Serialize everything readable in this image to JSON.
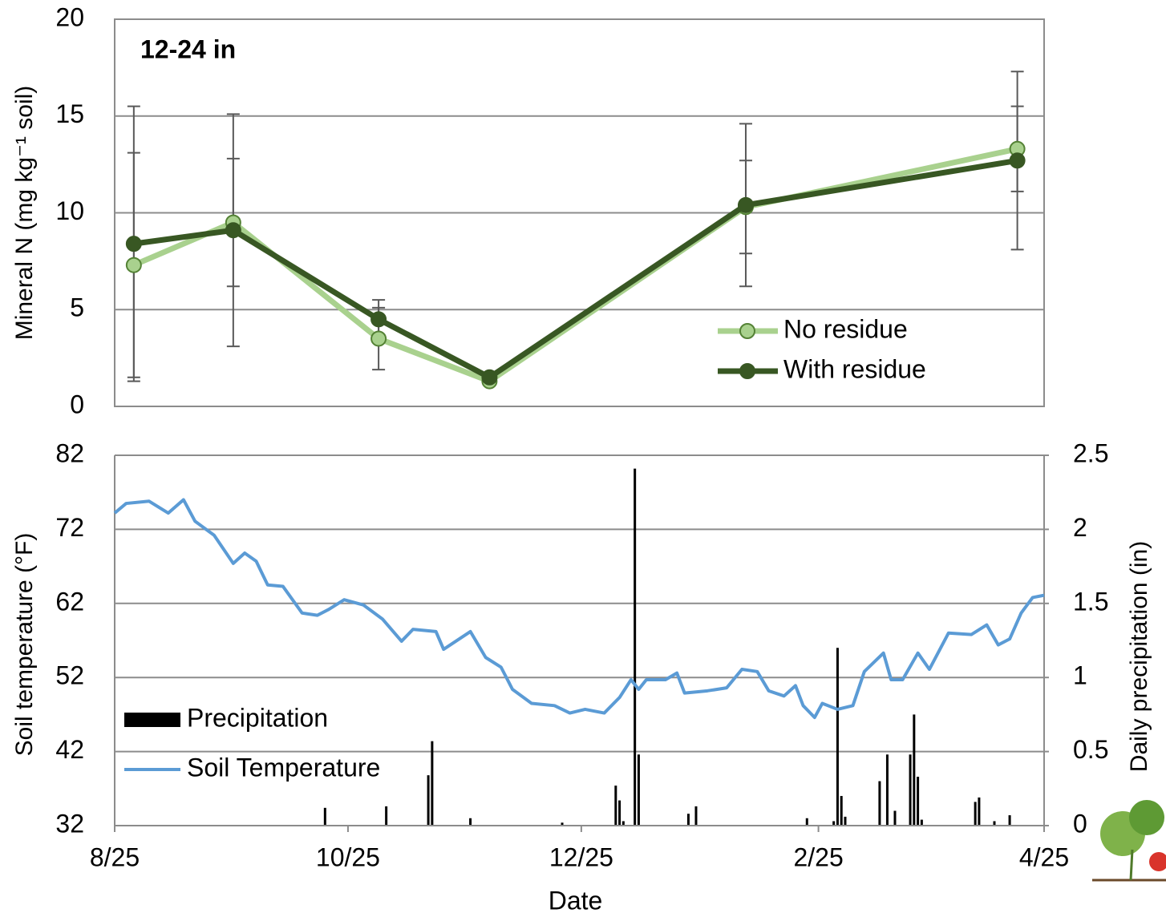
{
  "chart_data": [
    {
      "type": "line",
      "annotation": "12-24 in",
      "ylabel": "Mineral N (mg kg⁻¹ soil)",
      "xlim": [
        0,
        243
      ],
      "ylim": [
        0,
        20
      ],
      "yticks": [
        0,
        5,
        10,
        15,
        20
      ],
      "grid": true,
      "legend": "lower right",
      "x": [
        5,
        31,
        69,
        98,
        165,
        236
      ],
      "series": [
        {
          "name": "No residue",
          "color": "#a9d18e",
          "values": [
            7.3,
            9.5,
            3.5,
            1.3,
            10.3,
            13.3
          ],
          "errors": [
            5.8,
            3.3,
            1.6,
            0.1,
            2.4,
            2.2
          ]
        },
        {
          "name": "With residue",
          "color": "#385723",
          "values": [
            8.4,
            9.1,
            4.5,
            1.5,
            10.4,
            12.7
          ],
          "errors": [
            7.1,
            6.0,
            1.0,
            0.1,
            4.2,
            4.6
          ]
        }
      ]
    },
    {
      "type": "combo",
      "xlabel": "Date",
      "ylabel": "Soil temperature (°F)",
      "y2label": "Daily precipitation (in)",
      "xlim": [
        0,
        243
      ],
      "xticks": [
        {
          "value": 0,
          "label": "8/25"
        },
        {
          "value": 61,
          "label": "10/25"
        },
        {
          "value": 122,
          "label": "12/25"
        },
        {
          "value": 184,
          "label": "2/25"
        },
        {
          "value": 243,
          "label": "4/25"
        }
      ],
      "ylim": [
        32,
        82
      ],
      "yticks": [
        32,
        42,
        52,
        62,
        72,
        82
      ],
      "y2lim": [
        0,
        2.5
      ],
      "y2ticks": [
        0,
        0.5,
        1,
        1.5,
        2,
        2.5
      ],
      "grid": true,
      "legend": "lower left",
      "series": [
        {
          "name": "Precipitation",
          "type": "bar",
          "axis": "y2",
          "color": "#000000",
          "x": [
            55,
            71,
            82,
            83,
            93,
            117,
            131,
            132,
            133,
            136,
            137,
            150,
            152,
            181,
            188,
            189,
            190,
            191,
            200,
            202,
            204,
            208,
            209,
            210,
            211,
            225,
            226,
            230,
            234
          ],
          "values": [
            0.12,
            0.13,
            0.34,
            0.57,
            0.05,
            0.02,
            0.27,
            0.17,
            0.03,
            2.41,
            0.48,
            0.08,
            0.13,
            0.05,
            0.03,
            1.2,
            0.2,
            0.06,
            0.3,
            0.48,
            0.1,
            0.48,
            0.75,
            0.33,
            0.04,
            0.16,
            0.19,
            0.03,
            0.07
          ]
        },
        {
          "name": "Soil Temperature",
          "type": "line",
          "color": "#5b9bd5",
          "x": [
            0,
            3,
            9,
            14,
            18,
            21,
            26,
            31,
            34,
            37,
            40,
            44,
            49,
            53,
            56,
            60,
            65,
            70,
            75,
            78,
            84,
            86,
            93,
            97,
            101,
            104,
            109,
            115,
            119,
            123,
            128,
            132,
            135,
            137,
            139,
            144,
            147,
            149,
            155,
            160,
            164,
            168,
            171,
            175,
            178,
            180,
            183,
            185,
            189,
            193,
            196,
            201,
            203,
            206,
            210,
            213,
            218,
            224,
            228,
            231,
            234,
            237,
            240,
            243
          ],
          "values": [
            74.2,
            75.5,
            75.8,
            74.2,
            76,
            73.1,
            71.2,
            67.4,
            68.8,
            67.7,
            64.5,
            64.3,
            60.7,
            60.4,
            61.2,
            62.5,
            61.8,
            59.9,
            56.9,
            58.5,
            58.2,
            55.8,
            58.2,
            54.7,
            53.4,
            50.4,
            48.5,
            48.2,
            47.2,
            47.7,
            47.2,
            49.3,
            51.7,
            50.4,
            51.7,
            51.7,
            52.6,
            49.9,
            50.2,
            50.6,
            53.1,
            52.8,
            50.2,
            49.5,
            50.9,
            48.2,
            46.6,
            48.5,
            47.7,
            48.2,
            52.8,
            55.3,
            51.7,
            51.7,
            55.3,
            53.1,
            58,
            57.8,
            59.1,
            56.4,
            57.2,
            60.7,
            62.8,
            63.1
          ]
        }
      ]
    }
  ]
}
